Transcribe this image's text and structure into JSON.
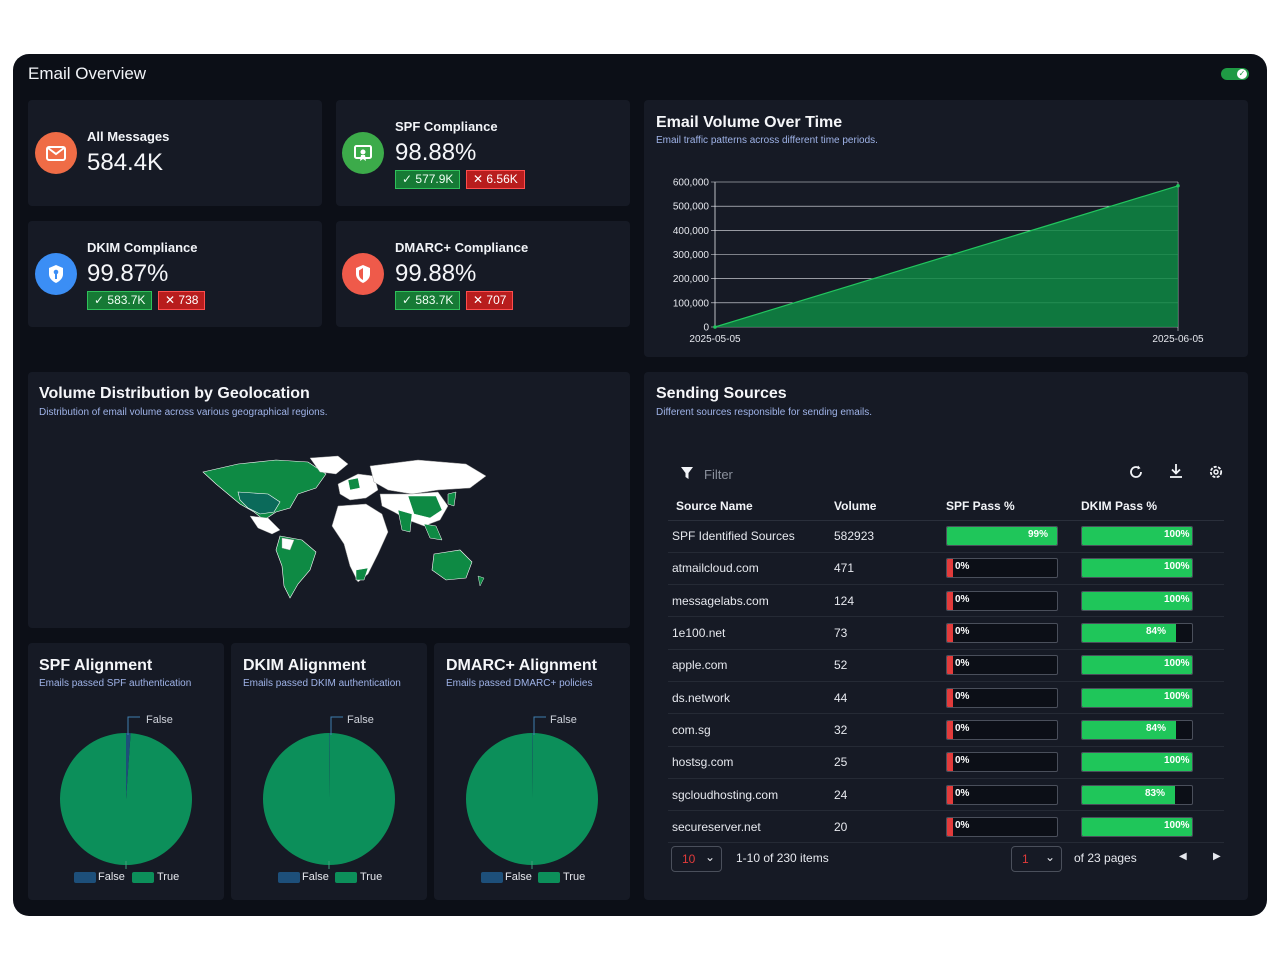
{
  "app": {
    "title": "Email Overview"
  },
  "kpis": [
    {
      "label": "All Messages",
      "value": "584.4K",
      "icon": "envelope-icon",
      "color": "#ef6c46"
    },
    {
      "label": "SPF Compliance",
      "value": "98.88%",
      "pass": "577.9K",
      "fail": "6.56K",
      "icon": "certificate-icon",
      "color": "#3cab4a"
    },
    {
      "label": "DKIM Compliance",
      "value": "99.87%",
      "pass": "583.7K",
      "fail": "738",
      "icon": "key-shield-icon",
      "color": "#3b8ef5"
    },
    {
      "label": "DMARC+ Compliance",
      "value": "99.88%",
      "pass": "583.7K",
      "fail": "707",
      "icon": "shield-icon",
      "color": "#ef5a4a"
    }
  ],
  "volume_chart": {
    "title": "Email Volume Over Time",
    "subtitle": "Email traffic patterns across different time periods."
  },
  "chart_data": {
    "type": "area",
    "x": [
      "2025-05-05",
      "2025-06-05"
    ],
    "y": [
      0,
      584400
    ],
    "yticks": [
      "0",
      "100,000",
      "200,000",
      "300,000",
      "400,000",
      "500,000",
      "600,000"
    ],
    "ylim": [
      0,
      600000
    ],
    "grid": true,
    "color": "#0e8a44"
  },
  "geo": {
    "title": "Volume Distribution by Geolocation",
    "subtitle": "Distribution of email volume across various geographical regions."
  },
  "alignments": [
    {
      "title": "SPF Alignment",
      "subtitle": "Emails passed SPF authentication",
      "false_label": "False",
      "legend_false": "False",
      "legend_true": "True",
      "false_fraction": 0.0112
    },
    {
      "title": "DKIM Alignment",
      "subtitle": "Emails passed DKIM authentication",
      "false_label": "False",
      "legend_false": "False",
      "legend_true": "True",
      "false_fraction": 0.0013
    },
    {
      "title": "DMARC+ Alignment",
      "subtitle": "Emails passed DMARC+ policies",
      "false_label": "False",
      "legend_false": "False",
      "legend_true": "True",
      "false_fraction": 0.0012
    }
  ],
  "sources": {
    "title": "Sending Sources",
    "subtitle": "Different sources responsible for sending emails.",
    "filter_placeholder": "Filter",
    "columns": [
      "Source Name",
      "Volume",
      "SPF Pass %",
      "DKIM Pass %"
    ],
    "rows": [
      {
        "name": "SPF Identified Sources",
        "volume": "582923",
        "spf": 99,
        "spf_label": "99%",
        "dkim": 100,
        "dkim_label": "100%"
      },
      {
        "name": "atmailcloud.com",
        "volume": "471",
        "spf": 0,
        "spf_label": "0%",
        "dkim": 100,
        "dkim_label": "100%"
      },
      {
        "name": "messagelabs.com",
        "volume": "124",
        "spf": 0,
        "spf_label": "0%",
        "dkim": 100,
        "dkim_label": "100%"
      },
      {
        "name": "1e100.net",
        "volume": "73",
        "spf": 0,
        "spf_label": "0%",
        "dkim": 84,
        "dkim_label": "84%"
      },
      {
        "name": "apple.com",
        "volume": "52",
        "spf": 0,
        "spf_label": "0%",
        "dkim": 100,
        "dkim_label": "100%"
      },
      {
        "name": "ds.network",
        "volume": "44",
        "spf": 0,
        "spf_label": "0%",
        "dkim": 100,
        "dkim_label": "100%"
      },
      {
        "name": "com.sg",
        "volume": "32",
        "spf": 0,
        "spf_label": "0%",
        "dkim": 84,
        "dkim_label": "84%"
      },
      {
        "name": "hostsg.com",
        "volume": "25",
        "spf": 0,
        "spf_label": "0%",
        "dkim": 100,
        "dkim_label": "100%"
      },
      {
        "name": "sgcloudhosting.com",
        "volume": "24",
        "spf": 0,
        "spf_label": "0%",
        "dkim": 83,
        "dkim_label": "83%"
      },
      {
        "name": "secureserver.net",
        "volume": "20",
        "spf": 0,
        "spf_label": "0%",
        "dkim": 100,
        "dkim_label": "100%"
      }
    ],
    "page_size": "10",
    "items_text": "1-10 of 230 items",
    "page": "1",
    "pages_text": "of 23 pages"
  },
  "colors": {
    "pass": "#1fc65a",
    "fail": "#e23b3b",
    "pie_true": "#0c8f5a",
    "pie_false": "#1d4f7a"
  }
}
